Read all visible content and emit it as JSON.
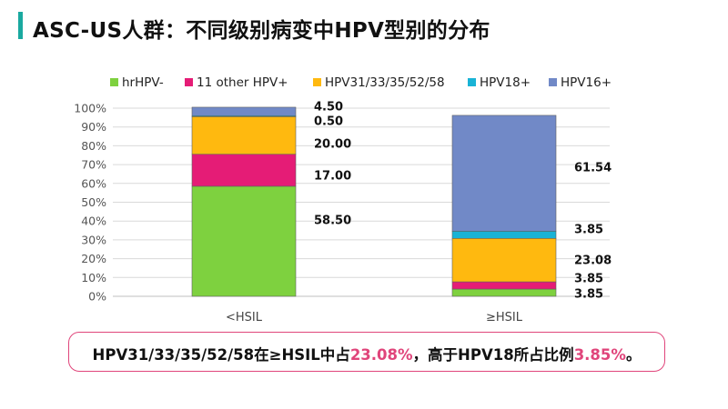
{
  "header": {
    "title": "ASC-US人群：不同级别病变中HPV型别的分布"
  },
  "chart_data": {
    "type": "bar",
    "stacked": true,
    "categories": [
      "<HSIL",
      "≥HSIL"
    ],
    "series": [
      {
        "name": "hrHPV-",
        "color": "#7ed13f",
        "values": [
          58.5,
          3.85
        ],
        "labels": [
          "58.50",
          "3.85"
        ]
      },
      {
        "name": "11 other HPV+",
        "color": "#e51c76",
        "values": [
          17.0,
          3.85
        ],
        "labels": [
          "17.00",
          "3.85"
        ]
      },
      {
        "name": "HPV31/33/35/52/58",
        "color": "#ffb90f",
        "values": [
          20.0,
          23.08
        ],
        "labels": [
          "20.00",
          "23.08"
        ]
      },
      {
        "name": "HPV18+",
        "color": "#19b3d6",
        "values": [
          0.5,
          3.85
        ],
        "labels": [
          "0.50",
          "3.85"
        ]
      },
      {
        "name": "HPV16+",
        "color": "#7189c7",
        "values": [
          4.5,
          61.54
        ],
        "labels": [
          "4.50",
          "61.54"
        ]
      }
    ],
    "ylim": [
      0,
      100
    ],
    "yticks": [
      0,
      10,
      20,
      30,
      40,
      50,
      60,
      70,
      80,
      90,
      100
    ],
    "ytick_labels": [
      "0%",
      "10%",
      "20%",
      "30%",
      "40%",
      "50%",
      "60%",
      "70%",
      "80%",
      "90%",
      "100%"
    ],
    "grid": true,
    "legend_position": "top"
  },
  "callout": {
    "prefix": "HPV31/33/35/52/58在≥HSIL中占",
    "value1": "23.08%",
    "middle": "，高于HPV18所占比例",
    "value2": "3.85%",
    "suffix": "。"
  }
}
